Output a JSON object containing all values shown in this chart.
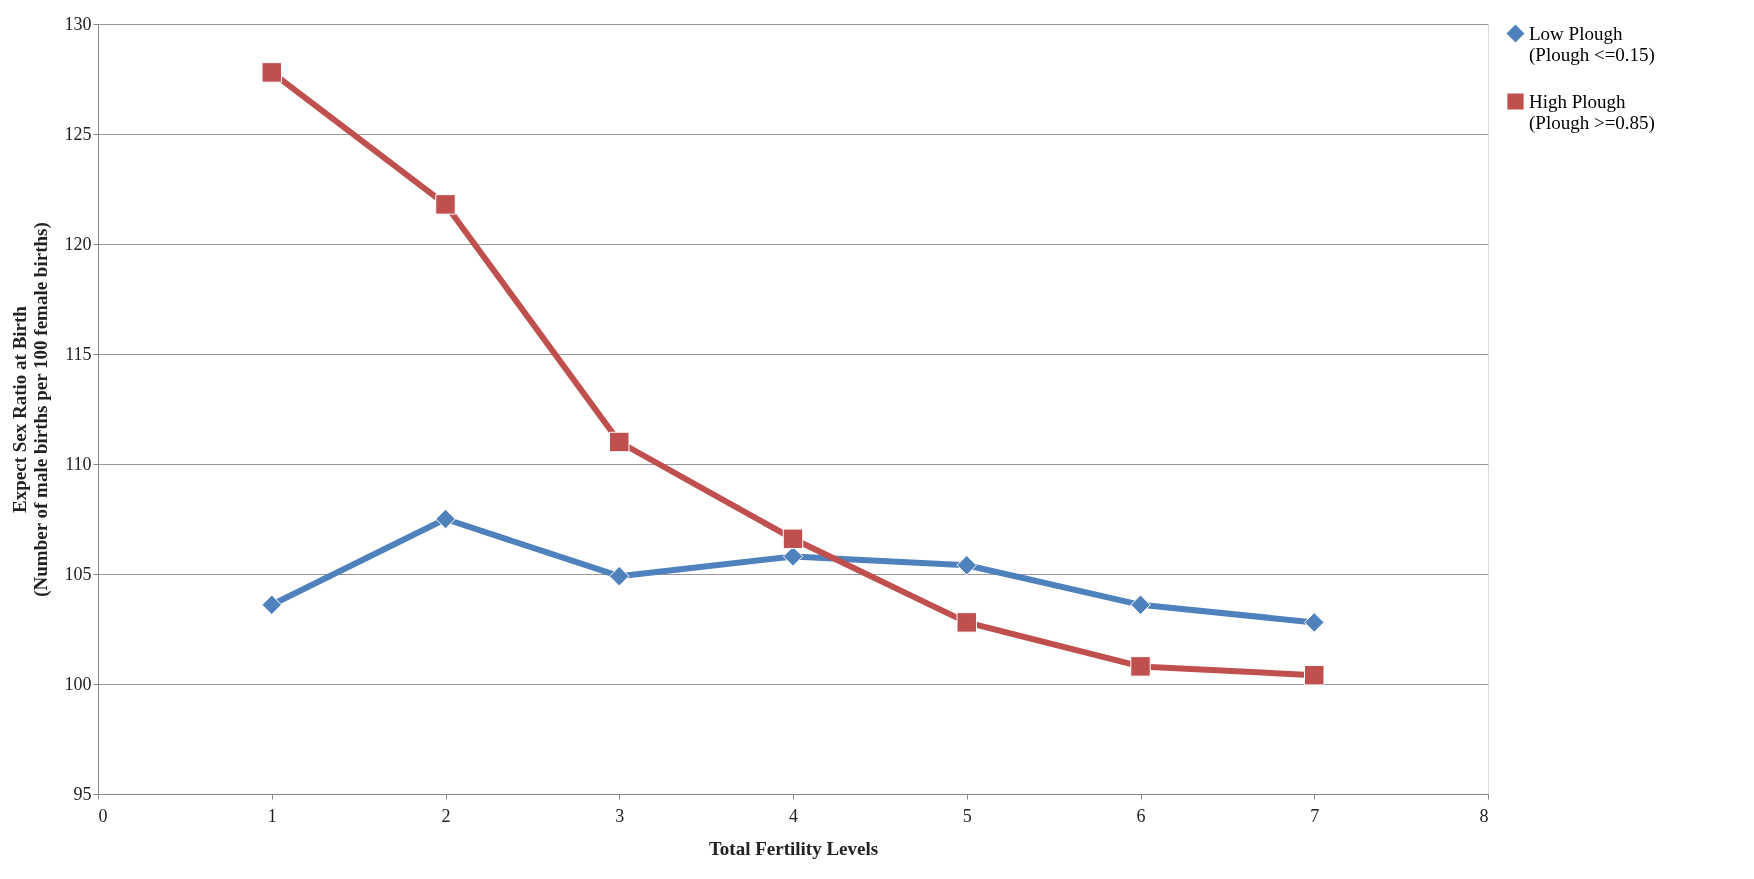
{
  "chart_data": {
    "type": "line",
    "xlabel": "Total Fertility Levels",
    "ylabel": "Expect Sex Ratio at Birth\n(Number of  male births per 100 female births)",
    "x": [
      1,
      2,
      3,
      4,
      5,
      6,
      7
    ],
    "series": [
      {
        "name": "Low Plough\n(Plough <=0.15)",
        "color": "#4f81bd",
        "marker": "diamond",
        "values": [
          103.6,
          107.5,
          104.9,
          105.8,
          105.4,
          103.6,
          102.8
        ]
      },
      {
        "name": "High Plough\n(Plough >=0.85)",
        "color": "#c0504d",
        "marker": "square",
        "values": [
          127.8,
          121.8,
          111.0,
          106.6,
          102.8,
          100.8,
          100.4
        ]
      }
    ],
    "xlim": [
      0,
      8
    ],
    "xticks": [
      0,
      1,
      2,
      3,
      4,
      5,
      6,
      7,
      8
    ],
    "ylim": [
      95,
      130
    ],
    "yticks": [
      95,
      100,
      105,
      110,
      115,
      120,
      125,
      130
    ],
    "grid": "y",
    "legend": "right",
    "line_style": "solid"
  }
}
